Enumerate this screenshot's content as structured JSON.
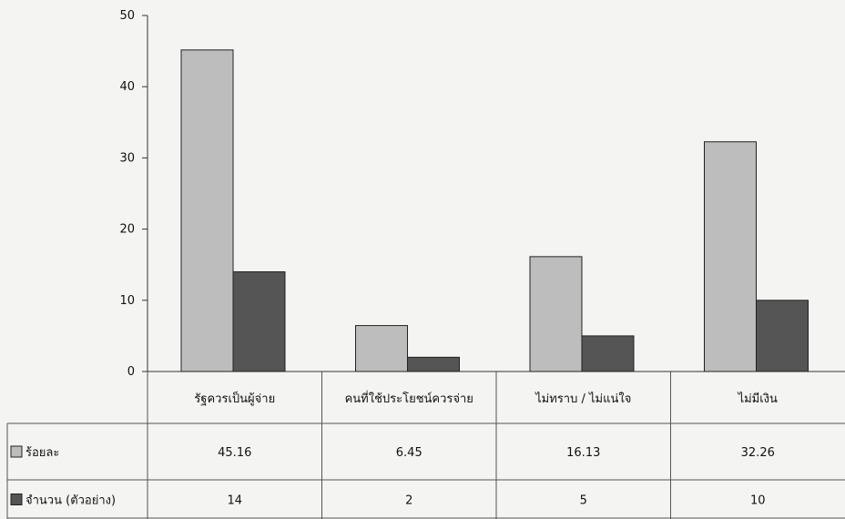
{
  "chart_data": {
    "type": "bar",
    "categories": [
      "รัฐควรเป็นผู้จ่าย",
      "คนที่ใช้ประโยชน์ควรจ่าย",
      "ไม่ทราบ / ไม่แน่ใจ",
      "ไม่มีเงิน"
    ],
    "series": [
      {
        "name": "ร้อยละ",
        "values": [
          45.16,
          6.45,
          16.13,
          32.26
        ],
        "color": "#bdbdbd",
        "labels": [
          "45.16",
          "6.45",
          "16.13",
          "32.26"
        ]
      },
      {
        "name": "จำนวน (ตัวอย่าง)",
        "values": [
          14,
          2,
          5,
          10
        ],
        "color": "#555555",
        "labels": [
          "14",
          "2",
          "5",
          "10"
        ]
      }
    ],
    "ylim": [
      0,
      50
    ],
    "yticks": [
      0,
      10,
      20,
      30,
      40,
      50
    ],
    "grid": false,
    "legend": "data-table"
  }
}
